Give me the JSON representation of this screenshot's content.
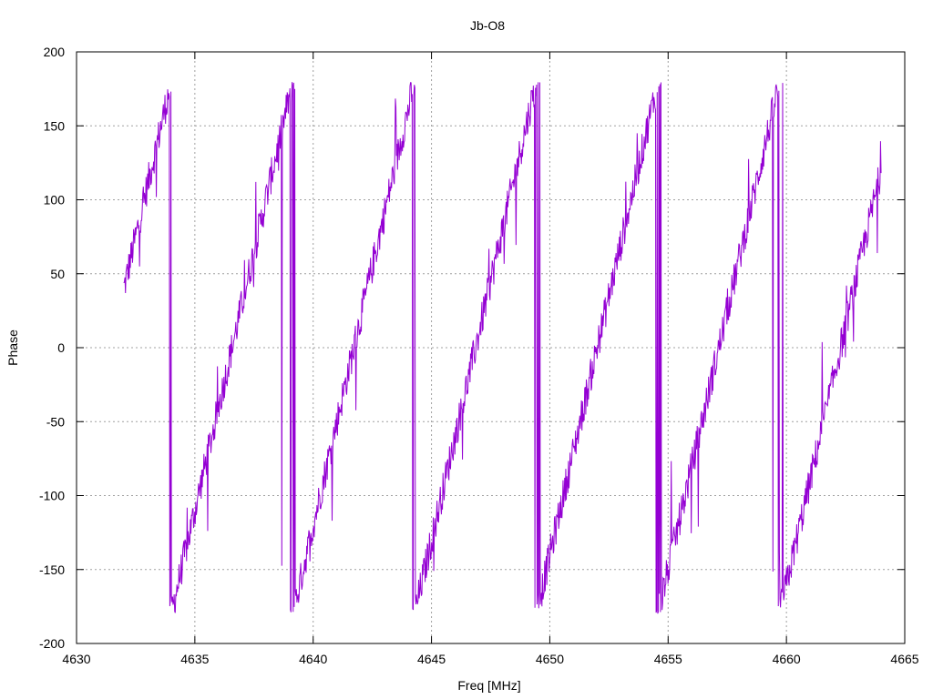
{
  "chart_data": {
    "type": "line",
    "title": "Jb-O8",
    "xlabel": "Freq [MHz]",
    "ylabel": "Phase",
    "xlim": [
      4630,
      4665
    ],
    "ylim": [
      -200,
      200
    ],
    "xticks": [
      4630,
      4635,
      4640,
      4645,
      4650,
      4655,
      4660,
      4665
    ],
    "yticks": [
      -200,
      -150,
      -100,
      -50,
      0,
      50,
      100,
      150,
      200
    ],
    "grid": true,
    "line_color": "#9400d3",
    "series": [
      {
        "x_start": 4632.0,
        "x_end": 4664.0,
        "phase_at_start": 40,
        "phase_slope_deg_per_mhz": 70,
        "noise_deg": 12,
        "description_note": "wrapped phase, approx. sawtooth ramp from -180 to 180"
      }
    ]
  }
}
